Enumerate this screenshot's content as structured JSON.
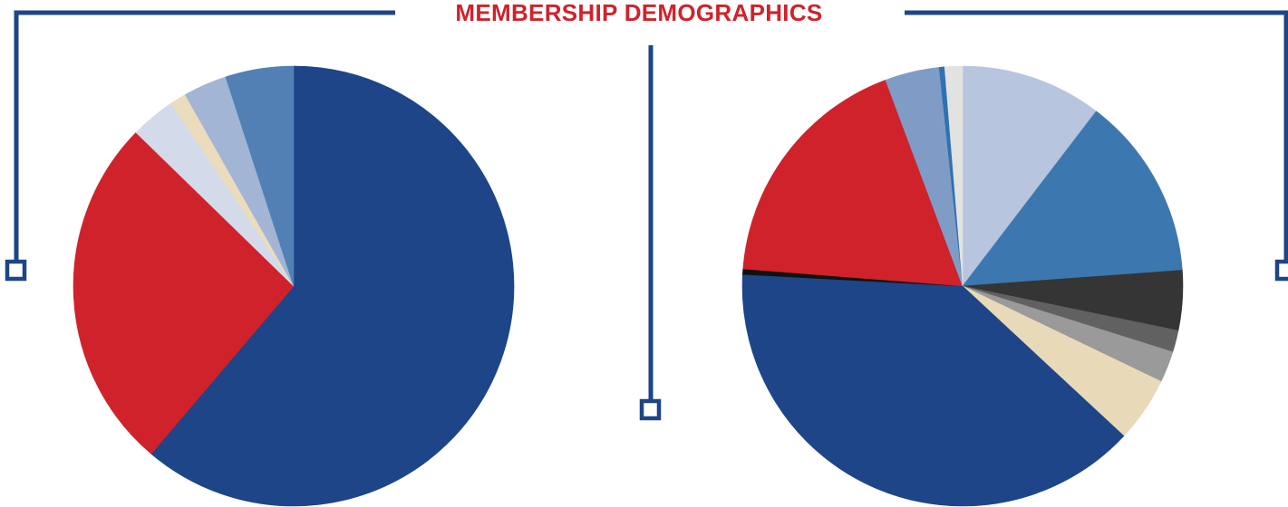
{
  "title": "MEMBERSHIP DEMOGRAPHICS",
  "colors": {
    "frame": "#1d4587",
    "title": "#d0222a"
  },
  "chart_data": [
    {
      "type": "pie",
      "title": "",
      "slices": [
        {
          "value": 61.2,
          "color": "#1d4587"
        },
        {
          "value": 26.1,
          "color": "#d0222a"
        },
        {
          "value": 3.3,
          "color": "#d3dbea"
        },
        {
          "value": 1.2,
          "color": "#eadcbd"
        },
        {
          "value": 3.2,
          "color": "#a3b5d4"
        },
        {
          "value": 5.0,
          "color": "#5280b4"
        }
      ]
    },
    {
      "type": "pie",
      "title": "",
      "slices": [
        {
          "value": 10.4,
          "color": "#b7c5df"
        },
        {
          "value": 13.5,
          "color": "#3c78af"
        },
        {
          "value": 4.4,
          "color": "#353535"
        },
        {
          "value": 1.6,
          "color": "#616161"
        },
        {
          "value": 2.3,
          "color": "#9a9a9a"
        },
        {
          "value": 4.8,
          "color": "#e8dab9"
        },
        {
          "value": 39.0,
          "color": "#1d4587"
        },
        {
          "value": 0.4,
          "color": "#111111"
        },
        {
          "value": 18.1,
          "color": "#d0222a"
        },
        {
          "value": 4.0,
          "color": "#7f9cc7"
        },
        {
          "value": 0.4,
          "color": "#2f72b2"
        },
        {
          "value": 1.3,
          "color": "#e2e2e0"
        }
      ]
    }
  ]
}
